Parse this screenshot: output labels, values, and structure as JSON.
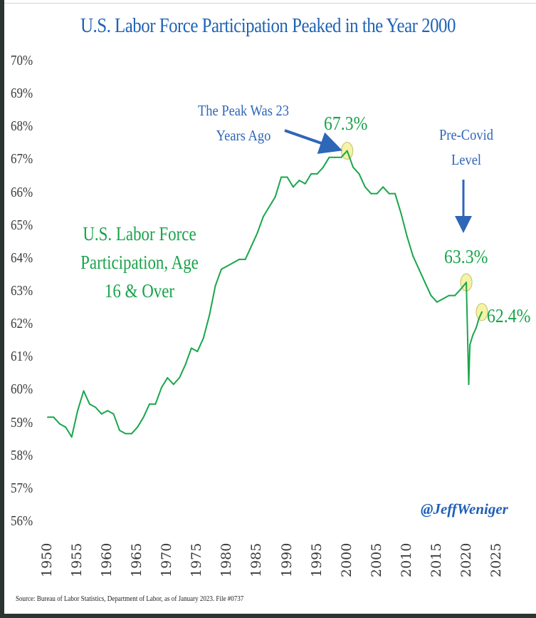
{
  "chart_data": {
    "type": "line",
    "title": "U.S. Labor Force Participation Peaked in the Year 2000",
    "xlabel": "",
    "ylabel": "",
    "ylim": [
      56,
      70
    ],
    "xlim": [
      1950,
      2025
    ],
    "grid": false,
    "y_ticks": [
      "70%",
      "69%",
      "68%",
      "67%",
      "66%",
      "65%",
      "64%",
      "63%",
      "62%",
      "61%",
      "60%",
      "59%",
      "58%",
      "57%",
      "56%"
    ],
    "x_ticks": [
      "1950",
      "1955",
      "1960",
      "1965",
      "1970",
      "1975",
      "1980",
      "1985",
      "1990",
      "1995",
      "2000",
      "2005",
      "2010",
      "2015",
      "2020",
      "2025"
    ],
    "series": [
      {
        "name": "U.S. Labor Force Participation, Age 16 & Over",
        "color": "#1aa64b",
        "x": [
          1950,
          1951,
          1952,
          1953,
          1954,
          1955,
          1956,
          1957,
          1958,
          1959,
          1960,
          1961,
          1962,
          1963,
          1964,
          1965,
          1966,
          1967,
          1968,
          1969,
          1970,
          1971,
          1972,
          1973,
          1974,
          1975,
          1976,
          1977,
          1978,
          1979,
          1980,
          1981,
          1982,
          1983,
          1984,
          1985,
          1986,
          1987,
          1988,
          1989,
          1990,
          1991,
          1992,
          1993,
          1994,
          1995,
          1996,
          1997,
          1998,
          1999,
          2000,
          2001,
          2002,
          2003,
          2004,
          2005,
          2006,
          2007,
          2008,
          2009,
          2010,
          2011,
          2012,
          2013,
          2014,
          2015,
          2016,
          2017,
          2018,
          2019,
          2019.9,
          2020.3,
          2020.5,
          2021,
          2021.5,
          2022,
          2022.5
        ],
        "values": [
          59.2,
          59.2,
          59.0,
          58.9,
          58.6,
          59.4,
          60.0,
          59.6,
          59.5,
          59.3,
          59.4,
          59.3,
          58.8,
          58.7,
          58.7,
          58.9,
          59.2,
          59.6,
          59.6,
          60.1,
          60.4,
          60.2,
          60.4,
          60.8,
          61.3,
          61.2,
          61.6,
          62.3,
          63.2,
          63.7,
          63.8,
          63.9,
          64.0,
          64.0,
          64.4,
          64.8,
          65.3,
          65.6,
          65.9,
          66.5,
          66.5,
          66.2,
          66.4,
          66.3,
          66.6,
          66.6,
          66.8,
          67.1,
          67.1,
          67.1,
          67.3,
          66.8,
          66.6,
          66.2,
          66.0,
          66.0,
          66.2,
          66.0,
          66.0,
          65.4,
          64.7,
          64.1,
          63.7,
          63.3,
          62.9,
          62.7,
          62.8,
          62.9,
          62.9,
          63.1,
          63.3,
          60.2,
          61.4,
          61.7,
          61.9,
          62.2,
          62.4
        ]
      }
    ],
    "annotations": [
      {
        "text": "The Peak Was 23 Years Ago",
        "points_to": "2000 peak",
        "color": "#2e66b8"
      },
      {
        "text": "67.3%",
        "at_x": 2000,
        "at_y": 67.3,
        "color": "#19a34a",
        "highlight": true
      },
      {
        "text": "Pre-Covid Level",
        "points_to": "2020 pre-covid",
        "color": "#2e66b8"
      },
      {
        "text": "63.3%",
        "at_x": 2019.9,
        "at_y": 63.3,
        "color": "#19a34a",
        "highlight": true
      },
      {
        "text": "62.4%",
        "at_x": 2022.5,
        "at_y": 62.4,
        "color": "#19a34a",
        "highlight": true
      }
    ]
  },
  "labels": {
    "title": "U.S. Labor Force Participation Peaked in the Year 2000",
    "series_label_line1": "U.S. Labor Force",
    "series_label_line2": "Participation, Age",
    "series_label_line3": "16 & Over",
    "peak_note_line1": "The Peak Was 23",
    "peak_note_line2": "Years Ago",
    "peak_value": "67.3%",
    "precovid_note_line1": "Pre-Covid",
    "precovid_note_line2": "Level",
    "precovid_value": "63.3%",
    "latest_value": "62.4%",
    "handle": "@JeffWeniger",
    "source": "Source: Bureau of Labor Statistics, Department of Labor, as of January 2023. File #0737"
  },
  "colors": {
    "title": "#1f63b5",
    "line": "#1aa64b",
    "annotation_blue": "#2e66b8",
    "highlight_fill": "#f4f3a6",
    "highlight_stroke": "#c9c77a"
  }
}
